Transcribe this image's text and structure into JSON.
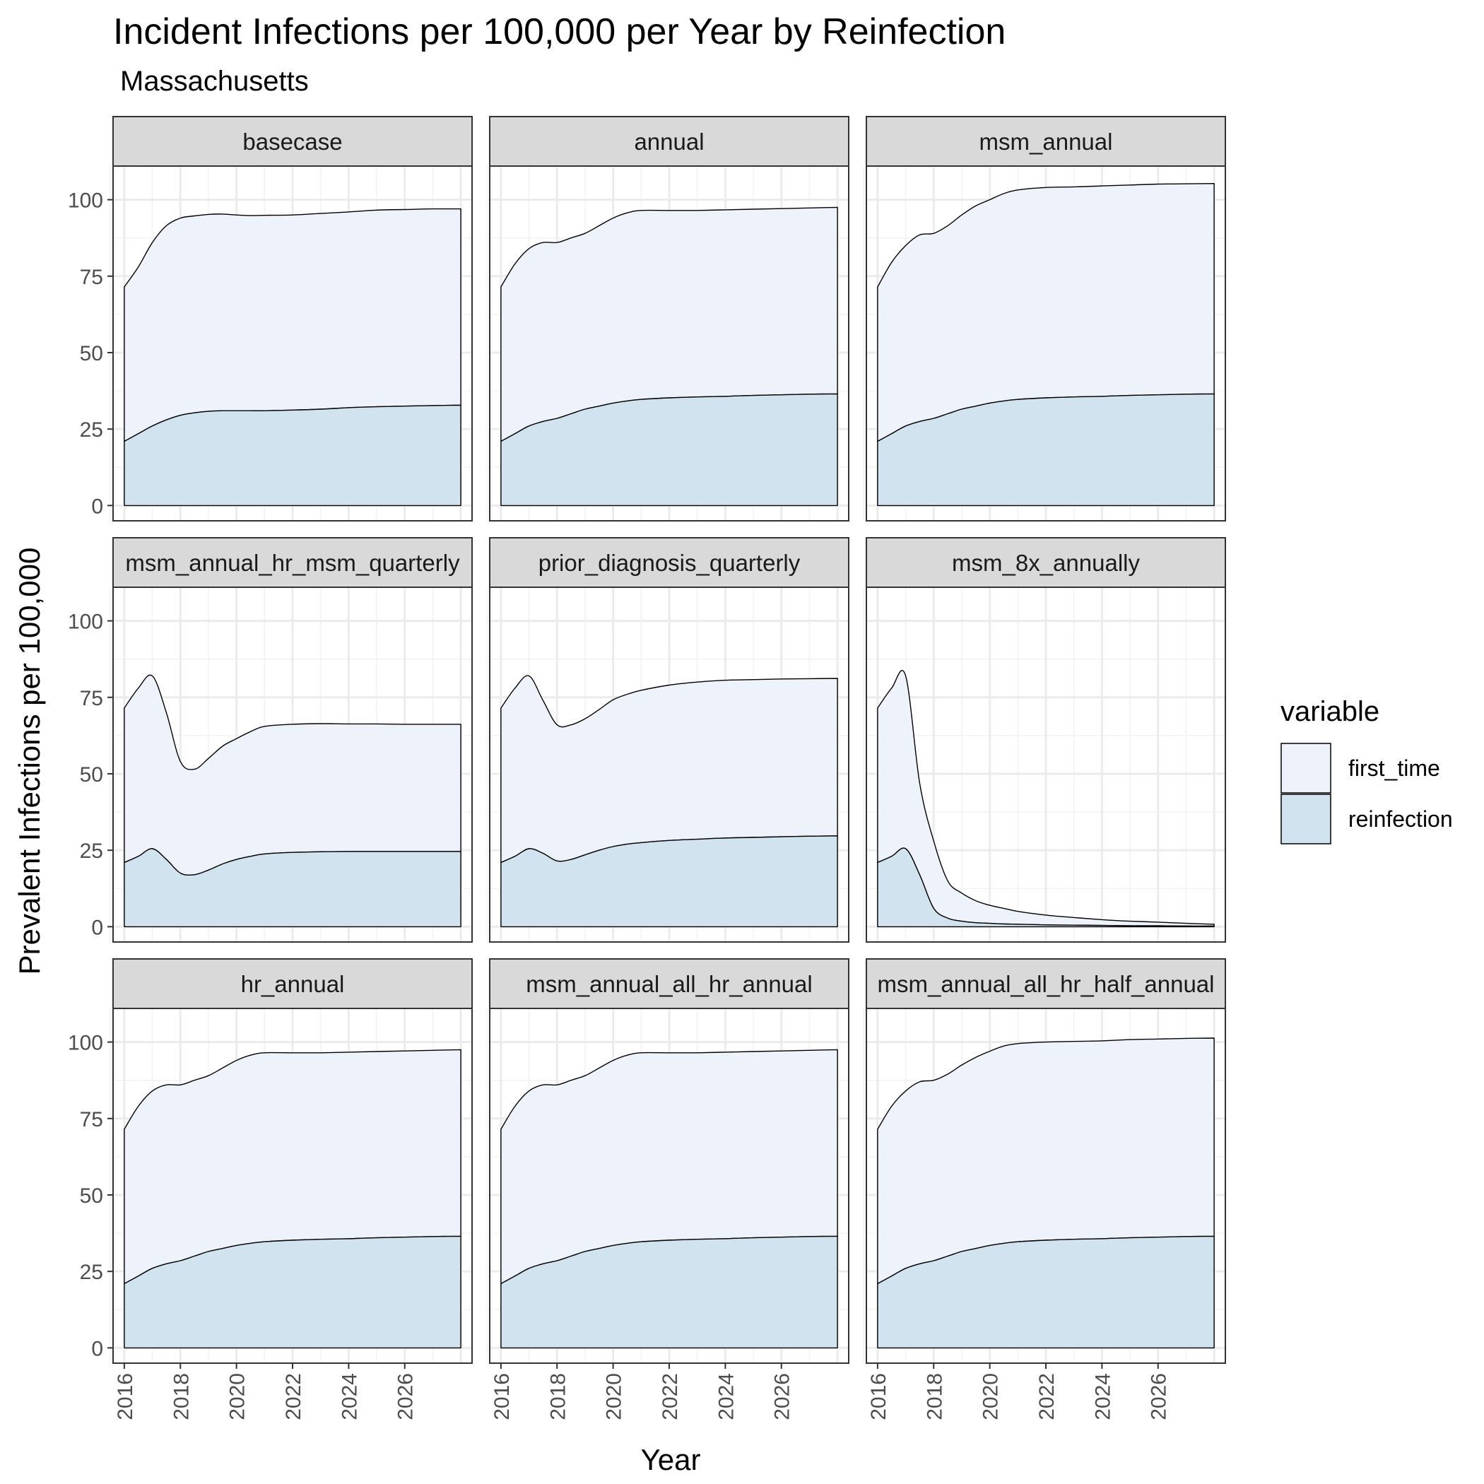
{
  "chart_data": {
    "type": "area",
    "stacked": true,
    "title": "Incident Infections per 100,000 per Year by Reinfection",
    "subtitle": "Massachusetts",
    "xlabel": "Year",
    "ylabel": "Prevalent Infections per 100,000",
    "xlim": [
      2015.6,
      2028.4
    ],
    "ylim": [
      -5,
      111
    ],
    "x_ticks": [
      2016,
      2018,
      2020,
      2022,
      2024,
      2026
    ],
    "y_ticks": [
      0,
      25,
      50,
      75,
      100
    ],
    "grid": true,
    "legend_position": "right",
    "legend": {
      "title": "variable",
      "entries": [
        {
          "name": "first_time",
          "color": "#eef3fb"
        },
        {
          "name": "reinfection",
          "color": "#d2e3f0"
        }
      ]
    },
    "x": [
      2016,
      2016.5,
      2017,
      2017.5,
      2018,
      2018.5,
      2019,
      2019.5,
      2020,
      2020.5,
      2021,
      2022,
      2023,
      2024,
      2025,
      2026,
      2027,
      2028
    ],
    "panels": [
      {
        "label": "basecase",
        "series": [
          {
            "name": "reinfection",
            "values": [
              21,
              23.5,
              26,
              28,
              29.5,
              30.3,
              30.8,
              31,
              31,
              31,
              31,
              31.2,
              31.5,
              32,
              32.3,
              32.5,
              32.7,
              32.8
            ]
          },
          {
            "name": "first_time",
            "values": [
              50.5,
              54.5,
              60,
              63.5,
              64.5,
              64.4,
              64.4,
              64.3,
              64,
              63.8,
              63.9,
              63.8,
              64,
              64,
              64.3,
              64.3,
              64.3,
              64.2
            ]
          }
        ]
      },
      {
        "label": "annual",
        "series": [
          {
            "name": "reinfection",
            "values": [
              21,
              23.5,
              26,
              27.5,
              28.5,
              30,
              31.5,
              32.5,
              33.5,
              34.2,
              34.7,
              35.2,
              35.5,
              35.7,
              36,
              36.2,
              36.4,
              36.5
            ]
          },
          {
            "name": "first_time",
            "values": [
              50.5,
              55.5,
              58,
              58.5,
              57.5,
              57.5,
              57.5,
              59,
              60.5,
              61.5,
              61.8,
              61.3,
              61,
              61,
              60.9,
              60.9,
              60.9,
              61
            ]
          }
        ]
      },
      {
        "label": "msm_annual",
        "series": [
          {
            "name": "reinfection",
            "values": [
              21,
              23.5,
              26,
              27.5,
              28.5,
              30,
              31.5,
              32.5,
              33.5,
              34.2,
              34.7,
              35.2,
              35.5,
              35.7,
              36,
              36.2,
              36.4,
              36.5
            ]
          },
          {
            "name": "first_time",
            "values": [
              50.5,
              56,
              59,
              61,
              60.5,
              61.5,
              63.5,
              65.5,
              66.5,
              67.8,
              68.5,
              68.8,
              68.7,
              68.8,
              68.8,
              68.9,
              68.8,
              68.8
            ]
          }
        ]
      },
      {
        "label": "msm_annual_hr_msm_quarterly",
        "series": [
          {
            "name": "reinfection",
            "values": [
              21,
              23,
              25.5,
              22,
              17.5,
              17,
              18.5,
              20.5,
              22,
              23,
              23.8,
              24.3,
              24.5,
              24.6,
              24.6,
              24.6,
              24.6,
              24.6
            ]
          },
          {
            "name": "first_time",
            "values": [
              50.5,
              55,
              56.5,
              48,
              36.5,
              34.5,
              36.5,
              38.5,
              39.5,
              40.8,
              41.7,
              41.9,
              41.9,
              41.7,
              41.7,
              41.6,
              41.6,
              41.6
            ]
          }
        ]
      },
      {
        "label": "prior_diagnosis_quarterly",
        "series": [
          {
            "name": "reinfection",
            "values": [
              21,
              23,
              25.5,
              24,
              21.5,
              22,
              23.5,
              25,
              26.2,
              27,
              27.5,
              28.2,
              28.6,
              29,
              29.2,
              29.4,
              29.6,
              29.7
            ]
          },
          {
            "name": "first_time",
            "values": [
              50.5,
              55,
              56.5,
              50,
              44.5,
              44,
              44.5,
              46,
              48,
              49,
              49.8,
              50.8,
              51.4,
              51.6,
              51.6,
              51.6,
              51.5,
              51.5
            ]
          }
        ]
      },
      {
        "label": "msm_8x_annually",
        "series": [
          {
            "name": "reinfection",
            "values": [
              21,
              23,
              25.5,
              17,
              6,
              2.8,
              1.8,
              1.3,
              1.1,
              0.9,
              0.8,
              0.6,
              0.5,
              0.4,
              0.3,
              0.3,
              0.2,
              0.2
            ]
          },
          {
            "name": "first_time",
            "values": [
              50.5,
              55,
              56.5,
              30,
              22,
              12.2,
              9.2,
              7.2,
              5.9,
              5.1,
              4.2,
              3.2,
              2.5,
              1.9,
              1.5,
              1.2,
              0.9,
              0.6
            ]
          }
        ]
      },
      {
        "label": "hr_annual",
        "series": [
          {
            "name": "reinfection",
            "values": [
              21,
              23.5,
              26,
              27.5,
              28.5,
              30,
              31.5,
              32.5,
              33.5,
              34.2,
              34.7,
              35.2,
              35.5,
              35.7,
              36,
              36.2,
              36.4,
              36.5
            ]
          },
          {
            "name": "first_time",
            "values": [
              50.5,
              55.5,
              58,
              58.5,
              57.5,
              57.5,
              57.5,
              59,
              60.5,
              61.5,
              61.8,
              61.3,
              61,
              61,
              60.9,
              60.9,
              60.9,
              61
            ]
          }
        ]
      },
      {
        "label": "msm_annual_all_hr_annual",
        "series": [
          {
            "name": "reinfection",
            "values": [
              21,
              23.5,
              26,
              27.5,
              28.5,
              30,
              31.5,
              32.5,
              33.5,
              34.2,
              34.7,
              35.2,
              35.5,
              35.7,
              36,
              36.2,
              36.4,
              36.5
            ]
          },
          {
            "name": "first_time",
            "values": [
              50.5,
              55.5,
              58,
              58.5,
              57.5,
              57.5,
              57.5,
              59,
              60.5,
              61.5,
              61.8,
              61.3,
              61,
              61,
              60.9,
              60.9,
              60.9,
              61
            ]
          }
        ]
      },
      {
        "label": "msm_annual_all_hr_half_annual",
        "series": [
          {
            "name": "reinfection",
            "values": [
              21,
              23.5,
              26,
              27.5,
              28.5,
              30,
              31.5,
              32.5,
              33.5,
              34.2,
              34.7,
              35.2,
              35.5,
              35.7,
              36,
              36.2,
              36.4,
              36.5
            ]
          },
          {
            "name": "first_time",
            "values": [
              50.5,
              55.5,
              58,
              59.5,
              59,
              59.5,
              61,
              62.5,
              63.5,
              64.5,
              64.8,
              64.8,
              64.7,
              64.7,
              64.8,
              64.8,
              64.8,
              64.8
            ]
          }
        ]
      }
    ]
  }
}
